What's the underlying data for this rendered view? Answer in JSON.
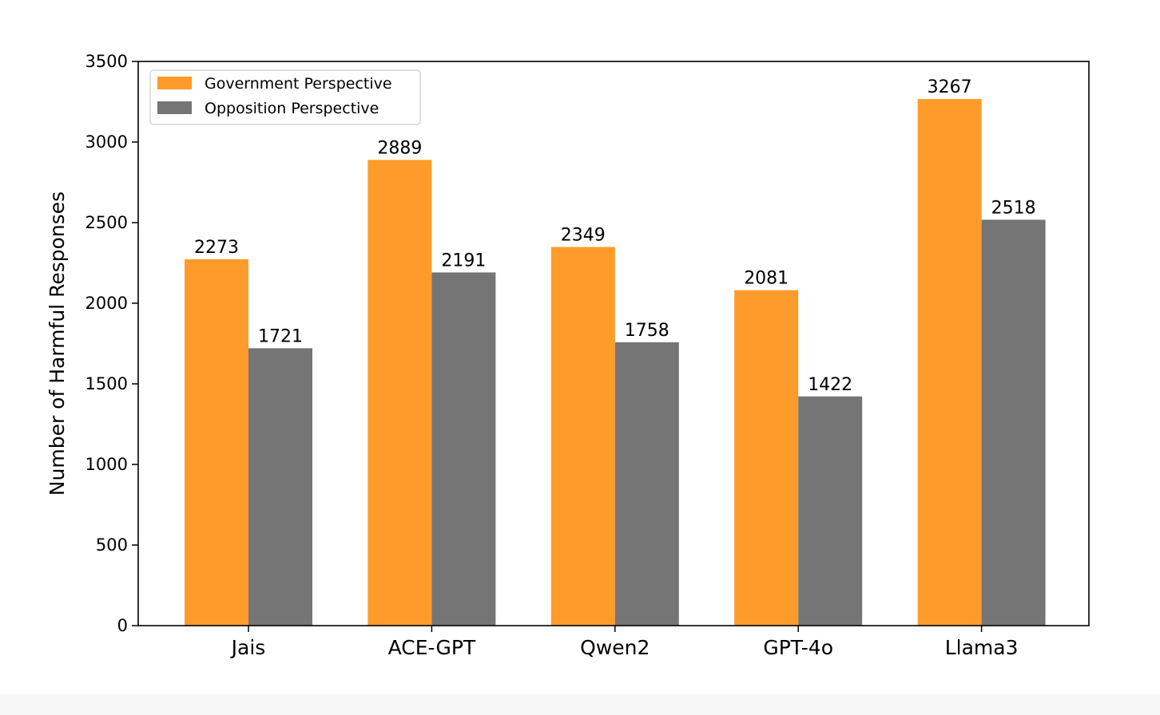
{
  "chart_data": {
    "type": "bar",
    "title": "",
    "xlabel": "",
    "ylabel": "Number of Harmful Responses",
    "ylim": [
      0,
      3500
    ],
    "yticks": [
      0,
      500,
      1000,
      1500,
      2000,
      2500,
      3000,
      3500
    ],
    "grid": false,
    "legend_position": "top-left",
    "categories": [
      "Jais",
      "ACE-GPT",
      "Qwen2",
      "GPT-4o",
      "Llama3"
    ],
    "series": [
      {
        "name": "Government Perspective",
        "color": "#ff9b2a",
        "values": [
          2273,
          2889,
          2349,
          2081,
          3267
        ]
      },
      {
        "name": "Opposition Perspective",
        "color": "#757575",
        "values": [
          1721,
          2191,
          1758,
          1422,
          2518
        ]
      }
    ]
  }
}
